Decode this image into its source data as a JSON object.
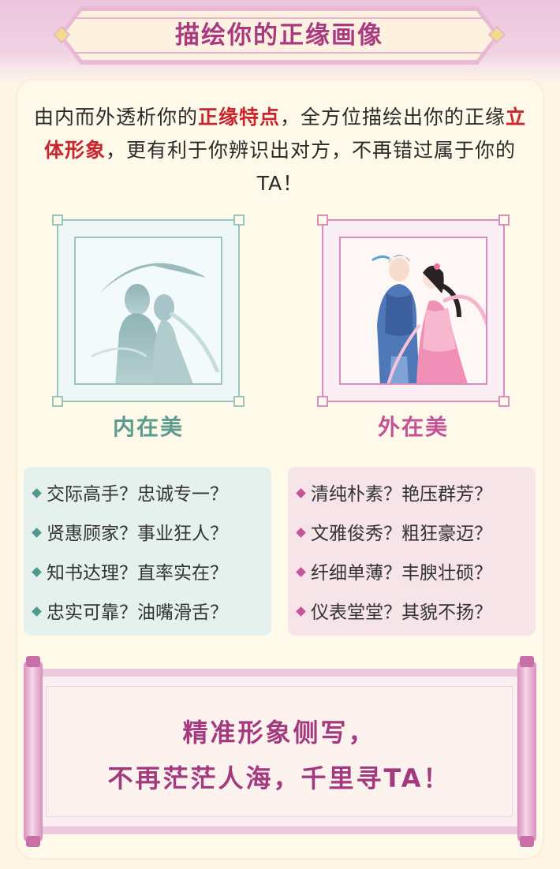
{
  "header": {
    "title": "描绘你的正缘画像"
  },
  "intro": {
    "part1": "由内而外透析你的",
    "highlight1": "正缘特点",
    "part2": "，全方位描绘出你的正缘",
    "highlight2": "立体形象",
    "part3": "，更有利于你辨识出对方，不再错过属于你的TA！"
  },
  "portraits": {
    "inner_label": "内在美",
    "outer_label": "外在美"
  },
  "inner_questions": [
    "交际高手？忠诚专一？",
    "贤惠顾家？事业狂人？",
    "知书达理？直率实在？",
    "忠实可靠？油嘴滑舌？"
  ],
  "outer_questions": [
    "清纯朴素？艳压群芳？",
    "文雅俊秀？粗狂豪迈？",
    "纤细单薄？丰腴壮硕？",
    "仪表堂堂？其貌不扬？"
  ],
  "scroll": {
    "line1": "精准形象侧写，",
    "line2": "不再茫茫人海，千里寻TA！"
  },
  "colors": {
    "title": "#a93a82",
    "highlight": "#c8262f",
    "inner_accent": "#5b9c8f",
    "outer_accent": "#c15396"
  }
}
